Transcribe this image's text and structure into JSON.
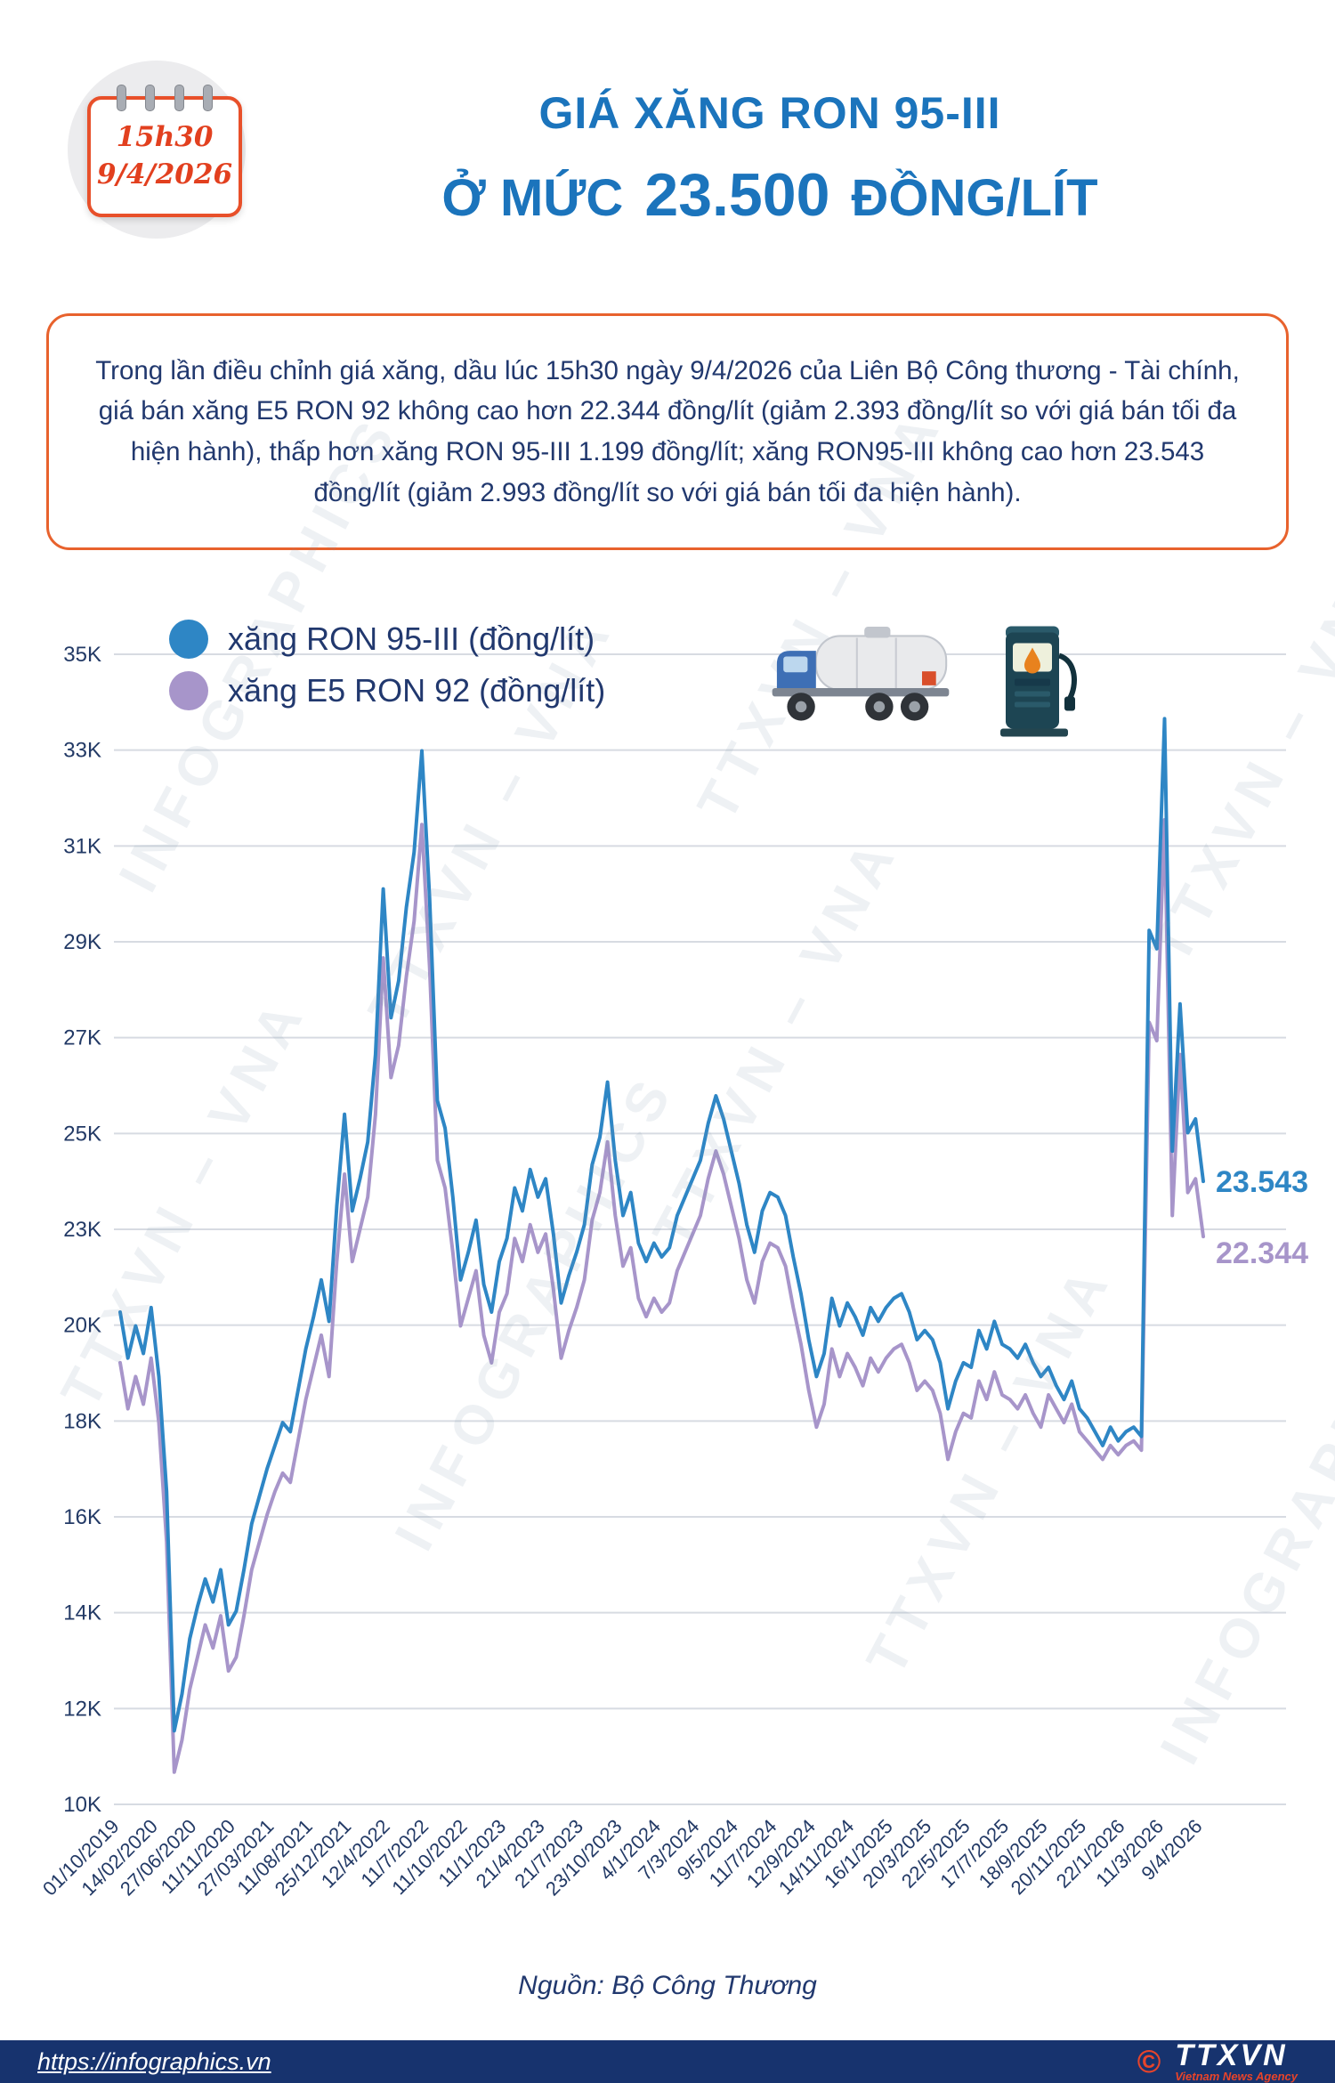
{
  "calendar": {
    "time": "15h30",
    "date": "9/4/2026"
  },
  "header": {
    "title": "GIÁ XĂNG RON 95-III",
    "subtitle_prefix": "Ở MỨC",
    "subtitle_value": "23.500",
    "subtitle_suffix": "ĐỒNG/LÍT"
  },
  "summary": {
    "text": "Trong lần điều chỉnh giá xăng, dầu lúc 15h30 ngày 9/4/2026 của Liên Bộ Công thương - Tài chính, giá bán xăng E5 RON 92 không cao hơn 22.344 đồng/lít (giảm 2.393 đồng/lít so với giá bán tối đa hiện hành), thấp hơn xăng RON 95-III 1.199 đồng/lít; xăng RON95-III không cao hơn 23.543 đồng/lít (giảm 2.993 đồng/lít so với giá bán tối đa hiện hành)."
  },
  "watermarks": {
    "a": "INFOGRAPHICS",
    "b": "TTXVN – VNA"
  },
  "chart_data": {
    "type": "line",
    "title": "",
    "xlabel": "",
    "ylabel": "",
    "unit": "đồng/lít (nghìn)",
    "grid": "horizontal",
    "legend_position": "top-left",
    "ylim": [
      10,
      35
    ],
    "yticks": [
      "35K",
      "33K",
      "31K",
      "29K",
      "27K",
      "25K",
      "23K",
      "20K",
      "18K",
      "16K",
      "14K",
      "12K",
      "10K"
    ],
    "categories": [
      "01/10/2019",
      "14/02/2020",
      "27/06/2020",
      "11/11/2020",
      "27/03/2021",
      "11/08/2021",
      "25/12/2021",
      "12/4/2022",
      "11/7/2022",
      "11/10/2022",
      "11/1/2023",
      "21/4/2023",
      "21/7/2023",
      "23/10/2023",
      "4/1/2024",
      "7/3/2024",
      "9/5/2024",
      "11/7/2024",
      "12/9/2024",
      "14/11/2024",
      "16/1/2025",
      "20/3/2025",
      "22/5/2025",
      "17/7/2025",
      "18/9/2025",
      "20/11/2025",
      "22/1/2026",
      "11/3/2026",
      "9/4/2026"
    ],
    "series": [
      {
        "name": "xăng RON 95-III (đồng/lít)",
        "color": "#2e86c5",
        "end_label": "23.543",
        "end_value": 23.543,
        "values": [
          20.7,
          19.7,
          20.4,
          19.8,
          20.8,
          19.3,
          16.8,
          11.6,
          12.4,
          13.6,
          14.3,
          14.9,
          14.4,
          15.1,
          13.9,
          14.2,
          15.1,
          16.1,
          16.7,
          17.3,
          17.8,
          18.3,
          18.1,
          19.0,
          19.9,
          20.6,
          21.4,
          20.5,
          23.0,
          25.0,
          22.9,
          23.6,
          24.4,
          26.3,
          29.9,
          27.1,
          27.9,
          29.5,
          30.7,
          32.9,
          29.7,
          25.3,
          24.7,
          23.2,
          21.4,
          22.0,
          22.7,
          21.3,
          20.7,
          21.8,
          22.3,
          23.4,
          22.9,
          23.8,
          23.2,
          23.6,
          22.4,
          20.9,
          21.5,
          22.0,
          22.6,
          23.9,
          24.5,
          25.7,
          24.0,
          22.8,
          23.3,
          22.2,
          21.8,
          22.2,
          21.9,
          22.1,
          22.8,
          23.2,
          23.6,
          24.0,
          24.8,
          25.4,
          24.9,
          24.2,
          23.5,
          22.6,
          22.0,
          22.9,
          23.3,
          23.2,
          22.8,
          21.9,
          21.1,
          20.1,
          19.3,
          19.8,
          21.0,
          20.4,
          20.9,
          20.6,
          20.2,
          20.8,
          20.5,
          20.8,
          21.0,
          21.1,
          20.7,
          20.1,
          20.3,
          20.1,
          19.6,
          18.6,
          19.2,
          19.6,
          19.5,
          20.3,
          19.9,
          20.5,
          20.0,
          19.9,
          19.7,
          20.0,
          19.6,
          19.3,
          19.5,
          19.1,
          18.8,
          19.2,
          18.6,
          18.4,
          18.1,
          17.8,
          18.2,
          17.9,
          18.1,
          18.2,
          18.0,
          29.0,
          28.6,
          33.6,
          24.2,
          27.4,
          24.6,
          24.9,
          23.543
        ]
      },
      {
        "name": "xăng E5 RON 92 (đồng/lít)",
        "color": "#a795ca",
        "end_label": "22.344",
        "end_value": 22.344,
        "values": [
          19.6,
          18.6,
          19.3,
          18.7,
          19.7,
          18.3,
          15.7,
          10.7,
          11.4,
          12.5,
          13.2,
          13.9,
          13.4,
          14.1,
          12.9,
          13.2,
          14.1,
          15.1,
          15.7,
          16.3,
          16.8,
          17.2,
          17.0,
          17.9,
          18.8,
          19.5,
          20.2,
          19.3,
          21.8,
          23.7,
          21.8,
          22.5,
          23.2,
          25.0,
          28.4,
          25.8,
          26.5,
          28.0,
          29.2,
          31.3,
          28.2,
          24.0,
          23.4,
          22.0,
          20.4,
          21.0,
          21.6,
          20.2,
          19.6,
          20.7,
          21.1,
          22.3,
          21.8,
          22.6,
          22.0,
          22.4,
          21.2,
          19.7,
          20.3,
          20.8,
          21.4,
          22.7,
          23.3,
          24.4,
          22.8,
          21.7,
          22.1,
          21.0,
          20.6,
          21.0,
          20.7,
          20.9,
          21.6,
          22.0,
          22.4,
          22.8,
          23.6,
          24.2,
          23.7,
          23.0,
          22.3,
          21.4,
          20.9,
          21.8,
          22.2,
          22.1,
          21.7,
          20.8,
          20.0,
          19.0,
          18.2,
          18.7,
          19.9,
          19.3,
          19.8,
          19.5,
          19.1,
          19.7,
          19.4,
          19.7,
          19.9,
          20.0,
          19.6,
          19.0,
          19.2,
          19.0,
          18.5,
          17.5,
          18.1,
          18.5,
          18.4,
          19.2,
          18.8,
          19.4,
          18.9,
          18.8,
          18.6,
          18.9,
          18.5,
          18.2,
          18.9,
          18.6,
          18.3,
          18.7,
          18.1,
          17.9,
          17.7,
          17.5,
          17.8,
          17.6,
          17.8,
          17.9,
          17.7,
          27.0,
          26.6,
          31.4,
          22.8,
          26.3,
          23.3,
          23.6,
          22.344
        ]
      }
    ]
  },
  "source": {
    "text": "Nguồn: Bộ Công Thương"
  },
  "footer": {
    "url": "https://infographics.vn",
    "copyright_symbol": "©",
    "agency": "TTXVN",
    "agency_sub": "Vietnam News Agency"
  }
}
